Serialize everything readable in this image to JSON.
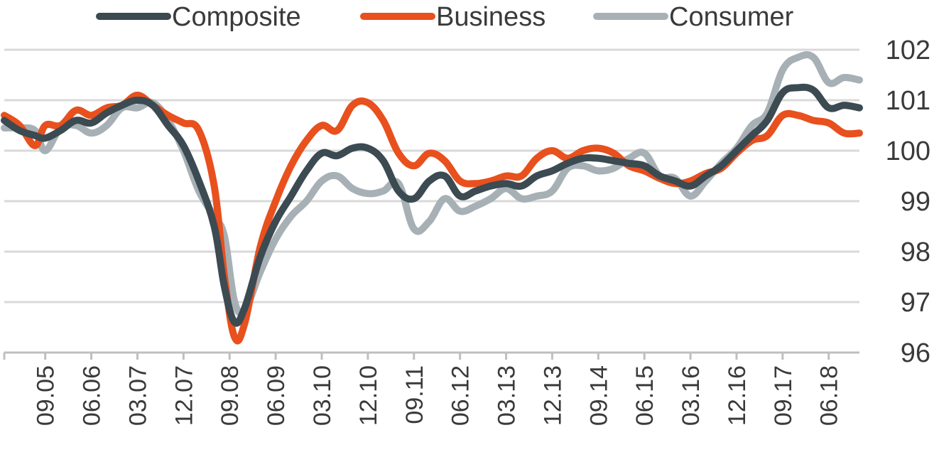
{
  "chart_data": {
    "type": "line",
    "title": "",
    "xlabel": "",
    "ylabel": "",
    "ylim": [
      96,
      102
    ],
    "yticks": [
      "96",
      "97",
      "98",
      "99",
      "100",
      "101",
      "102"
    ],
    "y_axis_side": "right",
    "grid": true,
    "legend_position": "top",
    "x_tick_labels": [
      "09.05",
      "06.06",
      "03.07",
      "12.07",
      "09.08",
      "06.09",
      "03.10",
      "12.10",
      "09.11",
      "06.12",
      "03.13",
      "12.13",
      "09.14",
      "06.15",
      "03.16",
      "12.16",
      "09.17",
      "06.18"
    ],
    "x_start": "01.05",
    "x_end": "12.18",
    "series": [
      {
        "name": "Composite",
        "color": "#3c4a52",
        "points": [
          [
            "01.05",
            100.6
          ],
          [
            "04.05",
            100.4
          ],
          [
            "07.05",
            100.3
          ],
          [
            "09.05",
            100.25
          ],
          [
            "12.05",
            100.4
          ],
          [
            "03.06",
            100.6
          ],
          [
            "06.06",
            100.55
          ],
          [
            "09.06",
            100.75
          ],
          [
            "12.06",
            100.9
          ],
          [
            "03.07",
            101.0
          ],
          [
            "06.07",
            100.9
          ],
          [
            "09.07",
            100.5
          ],
          [
            "12.07",
            100.1
          ],
          [
            "03.08",
            99.4
          ],
          [
            "06.08",
            98.5
          ],
          [
            "08.08",
            97.3
          ],
          [
            "10.08",
            96.6
          ],
          [
            "12.08",
            96.9
          ],
          [
            "03.09",
            97.9
          ],
          [
            "06.09",
            98.6
          ],
          [
            "09.09",
            99.1
          ],
          [
            "12.09",
            99.6
          ],
          [
            "03.10",
            99.95
          ],
          [
            "06.10",
            99.9
          ],
          [
            "09.10",
            100.05
          ],
          [
            "12.10",
            100.05
          ],
          [
            "03.11",
            99.8
          ],
          [
            "06.11",
            99.2
          ],
          [
            "09.11",
            99.05
          ],
          [
            "12.11",
            99.4
          ],
          [
            "03.12",
            99.5
          ],
          [
            "06.12",
            99.1
          ],
          [
            "09.12",
            99.2
          ],
          [
            "12.12",
            99.3
          ],
          [
            "03.13",
            99.35
          ],
          [
            "06.13",
            99.3
          ],
          [
            "09.13",
            99.5
          ],
          [
            "12.13",
            99.6
          ],
          [
            "03.14",
            99.75
          ],
          [
            "06.14",
            99.85
          ],
          [
            "09.14",
            99.85
          ],
          [
            "12.14",
            99.8
          ],
          [
            "03.15",
            99.75
          ],
          [
            "06.15",
            99.7
          ],
          [
            "09.15",
            99.5
          ],
          [
            "12.15",
            99.4
          ],
          [
            "03.16",
            99.3
          ],
          [
            "06.16",
            99.5
          ],
          [
            "09.16",
            99.7
          ],
          [
            "12.16",
            100.0
          ],
          [
            "03.17",
            100.3
          ],
          [
            "06.17",
            100.6
          ],
          [
            "09.17",
            101.15
          ],
          [
            "12.17",
            101.25
          ],
          [
            "03.18",
            101.2
          ],
          [
            "06.18",
            100.85
          ],
          [
            "09.18",
            100.9
          ],
          [
            "12.18",
            100.85
          ]
        ]
      },
      {
        "name": "Business",
        "color": "#e8501e",
        "points": [
          [
            "01.05",
            100.7
          ],
          [
            "04.05",
            100.5
          ],
          [
            "07.05",
            100.1
          ],
          [
            "09.05",
            100.5
          ],
          [
            "12.05",
            100.5
          ],
          [
            "03.06",
            100.8
          ],
          [
            "06.06",
            100.7
          ],
          [
            "09.06",
            100.85
          ],
          [
            "12.06",
            100.9
          ],
          [
            "03.07",
            101.1
          ],
          [
            "06.07",
            100.9
          ],
          [
            "09.07",
            100.7
          ],
          [
            "12.07",
            100.55
          ],
          [
            "03.08",
            100.4
          ],
          [
            "06.08",
            99.3
          ],
          [
            "08.08",
            97.5
          ],
          [
            "10.08",
            96.3
          ],
          [
            "12.08",
            96.6
          ],
          [
            "03.09",
            98.1
          ],
          [
            "06.09",
            99.0
          ],
          [
            "09.09",
            99.7
          ],
          [
            "12.09",
            100.2
          ],
          [
            "03.10",
            100.5
          ],
          [
            "06.10",
            100.4
          ],
          [
            "09.10",
            100.9
          ],
          [
            "12.10",
            100.95
          ],
          [
            "03.11",
            100.6
          ],
          [
            "06.11",
            99.95
          ],
          [
            "09.11",
            99.7
          ],
          [
            "12.11",
            99.95
          ],
          [
            "03.12",
            99.8
          ],
          [
            "06.12",
            99.4
          ],
          [
            "09.12",
            99.35
          ],
          [
            "12.12",
            99.4
          ],
          [
            "03.13",
            99.5
          ],
          [
            "06.13",
            99.5
          ],
          [
            "09.13",
            99.85
          ],
          [
            "12.13",
            100.0
          ],
          [
            "03.14",
            99.85
          ],
          [
            "06.14",
            100.0
          ],
          [
            "09.14",
            100.05
          ],
          [
            "12.14",
            99.95
          ],
          [
            "03.15",
            99.7
          ],
          [
            "06.15",
            99.6
          ],
          [
            "09.15",
            99.45
          ],
          [
            "12.15",
            99.35
          ],
          [
            "03.16",
            99.4
          ],
          [
            "06.16",
            99.55
          ],
          [
            "09.16",
            99.65
          ],
          [
            "12.16",
            99.95
          ],
          [
            "03.17",
            100.2
          ],
          [
            "06.17",
            100.3
          ],
          [
            "09.17",
            100.7
          ],
          [
            "12.17",
            100.7
          ],
          [
            "03.18",
            100.6
          ],
          [
            "06.18",
            100.55
          ],
          [
            "09.18",
            100.35
          ],
          [
            "12.18",
            100.35
          ]
        ]
      },
      {
        "name": "Consumer",
        "color": "#a7b1b5",
        "points": [
          [
            "01.05",
            100.45
          ],
          [
            "04.05",
            100.45
          ],
          [
            "07.05",
            100.4
          ],
          [
            "09.05",
            100.0
          ],
          [
            "12.05",
            100.45
          ],
          [
            "03.06",
            100.5
          ],
          [
            "06.06",
            100.35
          ],
          [
            "09.06",
            100.5
          ],
          [
            "12.06",
            100.85
          ],
          [
            "03.07",
            100.85
          ],
          [
            "06.07",
            100.95
          ],
          [
            "09.07",
            100.6
          ],
          [
            "12.07",
            100.0
          ],
          [
            "03.08",
            99.2
          ],
          [
            "06.08",
            98.7
          ],
          [
            "08.08",
            98.3
          ],
          [
            "10.08",
            97.0
          ],
          [
            "12.08",
            96.85
          ],
          [
            "03.09",
            97.6
          ],
          [
            "06.09",
            98.25
          ],
          [
            "09.09",
            98.7
          ],
          [
            "12.09",
            99.0
          ],
          [
            "03.10",
            99.4
          ],
          [
            "06.10",
            99.5
          ],
          [
            "09.10",
            99.25
          ],
          [
            "12.10",
            99.15
          ],
          [
            "03.11",
            99.2
          ],
          [
            "06.11",
            99.35
          ],
          [
            "09.11",
            98.45
          ],
          [
            "12.11",
            98.6
          ],
          [
            "03.12",
            99.05
          ],
          [
            "06.12",
            98.8
          ],
          [
            "09.12",
            98.9
          ],
          [
            "12.12",
            99.05
          ],
          [
            "03.13",
            99.25
          ],
          [
            "06.13",
            99.05
          ],
          [
            "09.13",
            99.1
          ],
          [
            "12.13",
            99.2
          ],
          [
            "03.14",
            99.65
          ],
          [
            "06.14",
            99.7
          ],
          [
            "09.14",
            99.6
          ],
          [
            "12.14",
            99.65
          ],
          [
            "03.15",
            99.85
          ],
          [
            "06.15",
            99.95
          ],
          [
            "09.15",
            99.5
          ],
          [
            "12.15",
            99.45
          ],
          [
            "03.16",
            99.1
          ],
          [
            "06.16",
            99.4
          ],
          [
            "09.16",
            99.75
          ],
          [
            "12.16",
            100.05
          ],
          [
            "03.17",
            100.5
          ],
          [
            "06.17",
            100.75
          ],
          [
            "09.17",
            101.6
          ],
          [
            "12.17",
            101.85
          ],
          [
            "03.18",
            101.85
          ],
          [
            "06.18",
            101.35
          ],
          [
            "09.18",
            101.45
          ],
          [
            "12.18",
            101.4
          ]
        ]
      }
    ]
  }
}
